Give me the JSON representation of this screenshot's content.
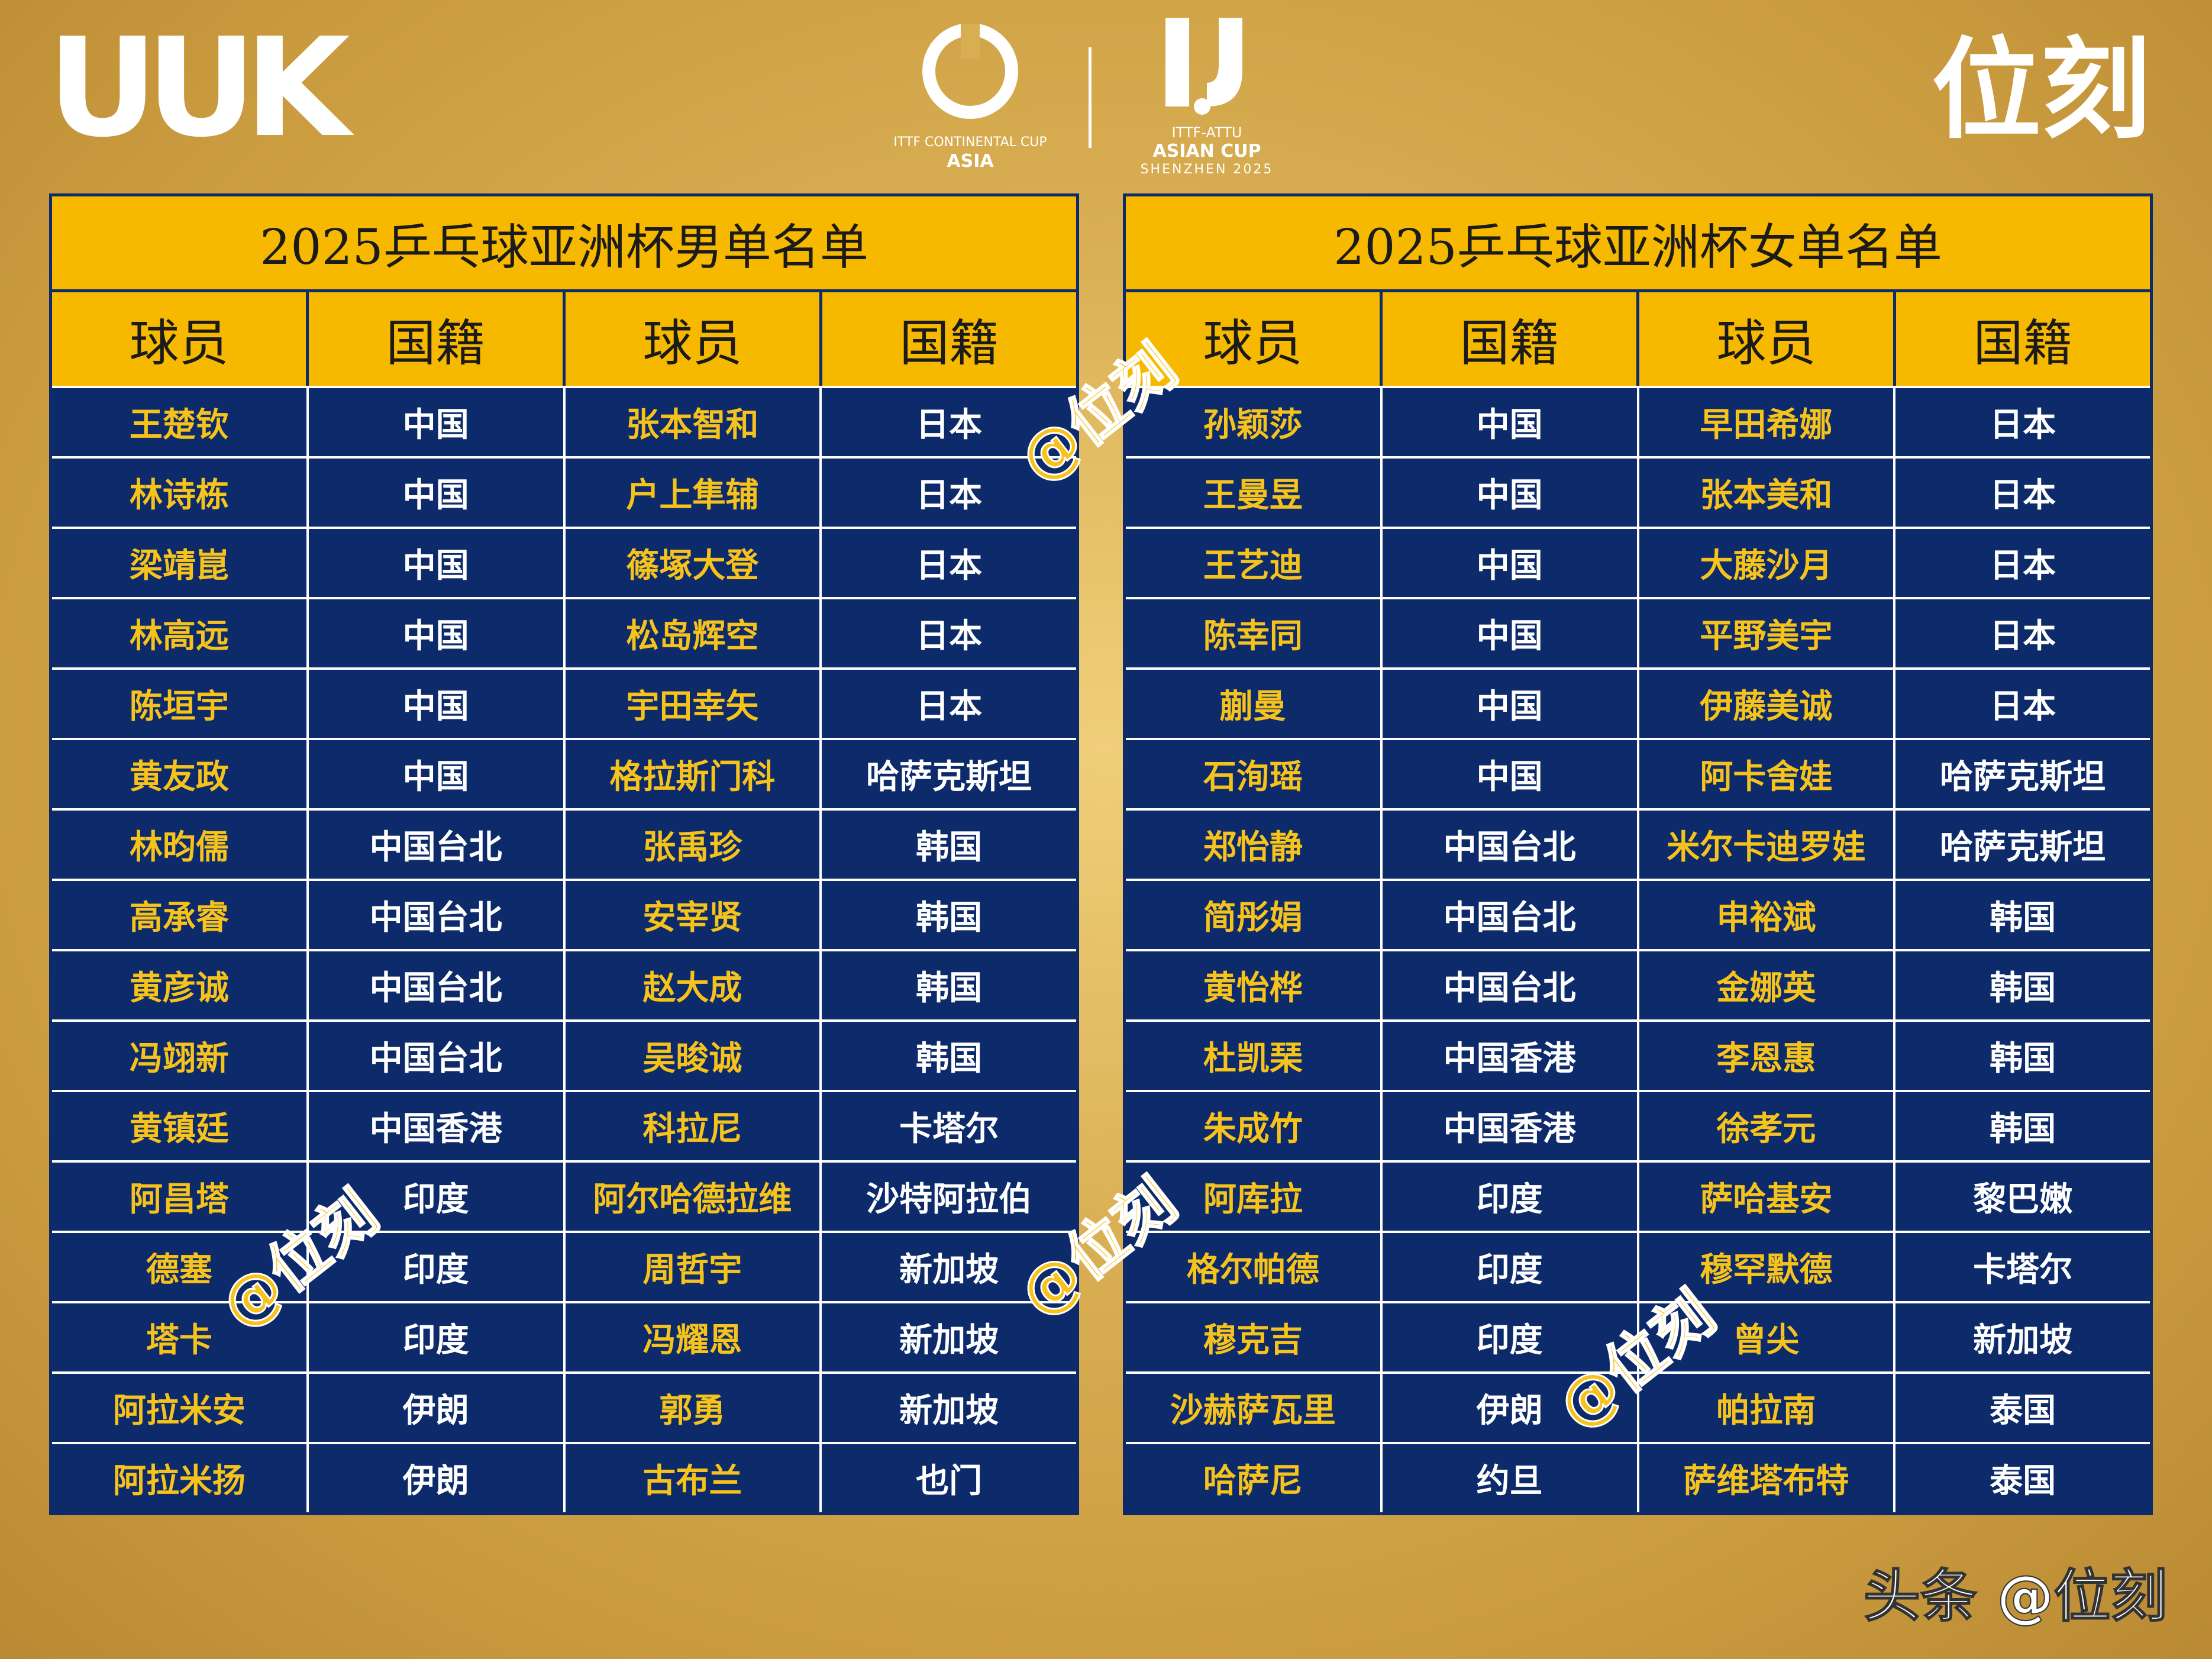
{
  "header": {
    "brand_left": "UUK",
    "logo_1": {
      "line1": "ITTF CONTINENTAL CUP",
      "line2": "ASIA"
    },
    "logo_2": {
      "line1": "ITTF-ATTU",
      "line2": "ASIAN CUP",
      "line3": "SHENZHEN 2025"
    },
    "brand_right": "位刻"
  },
  "tables": [
    {
      "title": "2025乒乓球亚洲杯男单名单",
      "columns": [
        "球员",
        "国籍",
        "球员",
        "国籍"
      ],
      "rows": [
        [
          "王楚钦",
          "中国",
          "张本智和",
          "日本"
        ],
        [
          "林诗栋",
          "中国",
          "户上隼辅",
          "日本"
        ],
        [
          "梁靖崑",
          "中国",
          "篠塚大登",
          "日本"
        ],
        [
          "林高远",
          "中国",
          "松岛辉空",
          "日本"
        ],
        [
          "陈垣宇",
          "中国",
          "宇田幸矢",
          "日本"
        ],
        [
          "黄友政",
          "中国",
          "格拉斯门科",
          "哈萨克斯坦"
        ],
        [
          "林昀儒",
          "中国台北",
          "张禹珍",
          "韩国"
        ],
        [
          "高承睿",
          "中国台北",
          "安宰贤",
          "韩国"
        ],
        [
          "黄彦诚",
          "中国台北",
          "赵大成",
          "韩国"
        ],
        [
          "冯翊新",
          "中国台北",
          "吴晙诚",
          "韩国"
        ],
        [
          "黄镇廷",
          "中国香港",
          "科拉尼",
          "卡塔尔"
        ],
        [
          "阿昌塔",
          "印度",
          "阿尔哈德拉维",
          "沙特阿拉伯"
        ],
        [
          "德塞",
          "印度",
          "周哲宇",
          "新加坡"
        ],
        [
          "塔卡",
          "印度",
          "冯耀恩",
          "新加坡"
        ],
        [
          "阿拉米安",
          "伊朗",
          "郭勇",
          "新加坡"
        ],
        [
          "阿拉米扬",
          "伊朗",
          "古布兰",
          "也门"
        ]
      ]
    },
    {
      "title": "2025乒乓球亚洲杯女单名单",
      "columns": [
        "球员",
        "国籍",
        "球员",
        "国籍"
      ],
      "rows": [
        [
          "孙颖莎",
          "中国",
          "早田希娜",
          "日本"
        ],
        [
          "王曼昱",
          "中国",
          "张本美和",
          "日本"
        ],
        [
          "王艺迪",
          "中国",
          "大藤沙月",
          "日本"
        ],
        [
          "陈幸同",
          "中国",
          "平野美宇",
          "日本"
        ],
        [
          "蒯曼",
          "中国",
          "伊藤美诚",
          "日本"
        ],
        [
          "石洵瑶",
          "中国",
          "阿卡舍娃",
          "哈萨克斯坦"
        ],
        [
          "郑怡静",
          "中国台北",
          "米尔卡迪罗娃",
          "哈萨克斯坦"
        ],
        [
          "简彤娟",
          "中国台北",
          "申裕斌",
          "韩国"
        ],
        [
          "黄怡桦",
          "中国台北",
          "金娜英",
          "韩国"
        ],
        [
          "杜凯琹",
          "中国香港",
          "李恩惠",
          "韩国"
        ],
        [
          "朱成竹",
          "中国香港",
          "徐孝元",
          "韩国"
        ],
        [
          "阿库拉",
          "印度",
          "萨哈基安",
          "黎巴嫩"
        ],
        [
          "格尔帕德",
          "印度",
          "穆罕默德",
          "卡塔尔"
        ],
        [
          "穆克吉",
          "印度",
          "曾尖",
          "新加坡"
        ],
        [
          "沙赫萨瓦里",
          "伊朗",
          "帕拉南",
          "泰国"
        ],
        [
          "哈萨尼",
          "约旦",
          "萨维塔布特",
          "泰国"
        ]
      ]
    }
  ],
  "watermarks": [
    "@位刻",
    "@位刻",
    "@位刻",
    "@位刻"
  ],
  "footer": "头条 @位刻"
}
